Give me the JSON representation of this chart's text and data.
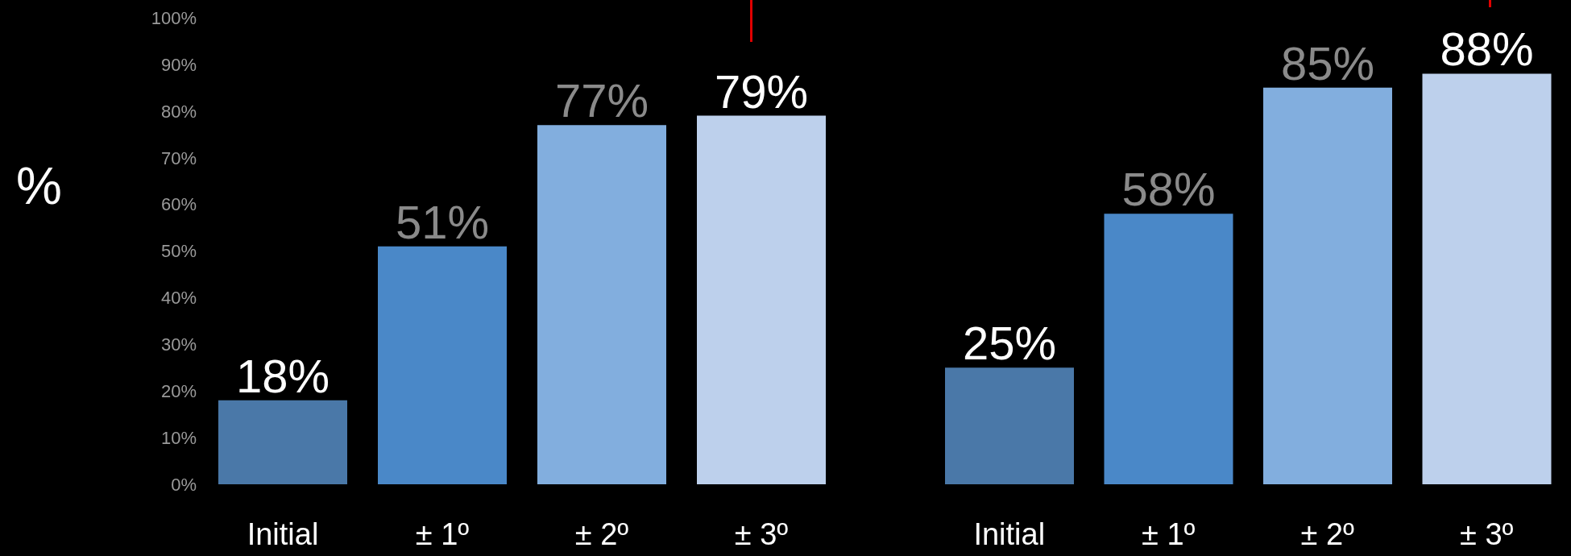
{
  "chart_data": [
    {
      "type": "bar",
      "categories": [
        "Initial",
        "± 1º",
        "± 2º",
        "± 3º"
      ],
      "values": [
        18,
        51,
        77,
        79
      ],
      "value_labels": [
        "18%",
        "51%",
        "77%",
        "79%"
      ],
      "colors": [
        "#4a78a8",
        "#4a88c8",
        "#82aede",
        "#bdd0ec"
      ],
      "ylabel": "%",
      "ylim": [
        0,
        100
      ],
      "yticks": [
        {
          "value": 0,
          "label": "0%"
        },
        {
          "value": 10,
          "label": "10%"
        },
        {
          "value": 20,
          "label": "20%"
        },
        {
          "value": 30,
          "label": "30%"
        },
        {
          "value": 40,
          "label": "40%"
        },
        {
          "value": 50,
          "label": "50%"
        },
        {
          "value": 60,
          "label": "60%"
        },
        {
          "value": 70,
          "label": "70%"
        },
        {
          "value": 80,
          "label": "80%"
        },
        {
          "value": 90,
          "label": "90%"
        },
        {
          "value": 100,
          "label": "100%"
        }
      ]
    },
    {
      "type": "bar",
      "categories": [
        "Initial",
        "± 1º",
        "± 2º",
        "± 3º"
      ],
      "values": [
        25,
        58,
        85,
        88
      ],
      "value_labels": [
        "25%",
        "58%",
        "85%",
        "88%"
      ],
      "colors": [
        "#4a78a8",
        "#4a88c8",
        "#82aede",
        "#bdd0ec"
      ],
      "ylim": [
        0,
        100
      ],
      "tick_labels": "x"
    }
  ]
}
